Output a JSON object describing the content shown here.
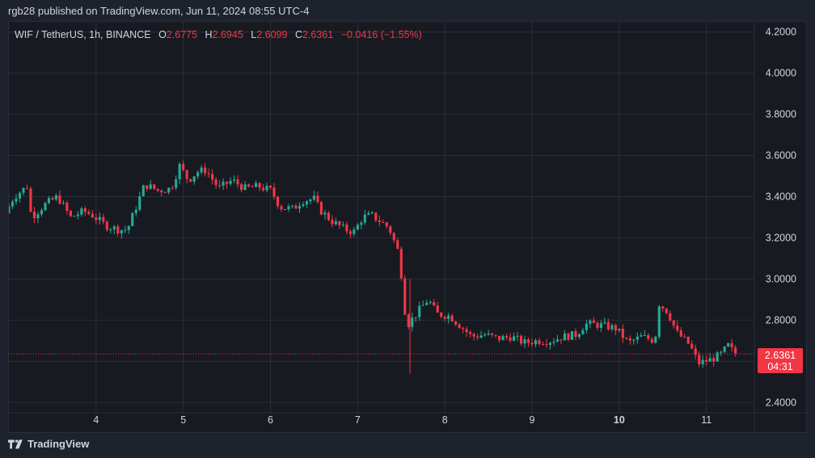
{
  "header": {
    "published": "rgb28 published on TradingView.com, Jun 11, 2024 08:55 UTC-4"
  },
  "legend": {
    "symbol": "WIF / TetherUS, 1h, BINANCE",
    "open_label": "O",
    "open": "2.6775",
    "high_label": "H",
    "high": "2.6945",
    "low_label": "L",
    "low": "2.6099",
    "close_label": "C",
    "close": "2.6361",
    "change": "−0.0416 (−1.55%)"
  },
  "price_tag": {
    "price": "2.6361",
    "countdown": "04:31"
  },
  "footer": {
    "brand": "TradingView",
    "logo_icon": "tradingview-logo-icon"
  },
  "colors": {
    "up": "#22ab94",
    "down": "#f23645",
    "grid": "#2a2e39",
    "background": "#181a22"
  },
  "chart_data": {
    "type": "candlestick",
    "interval": "1h",
    "ylim": [
      2.35,
      4.25
    ],
    "y_ticks": [
      "4.2000",
      "4.0000",
      "3.8000",
      "3.6000",
      "3.4000",
      "3.2000",
      "3.0000",
      "2.8000",
      "2.6000",
      "2.4000"
    ],
    "y_tick_values": [
      4.2,
      4.0,
      3.8,
      3.6,
      3.4,
      3.2,
      3.0,
      2.8,
      2.6,
      2.4
    ],
    "x_ticks": [
      {
        "label": "4",
        "day": 4,
        "bold": false
      },
      {
        "label": "5",
        "day": 5,
        "bold": false
      },
      {
        "label": "6",
        "day": 6,
        "bold": false
      },
      {
        "label": "7",
        "day": 7,
        "bold": false
      },
      {
        "label": "8",
        "day": 8,
        "bold": false
      },
      {
        "label": "9",
        "day": 9,
        "bold": false
      },
      {
        "label": "10",
        "day": 10,
        "bold": true
      },
      {
        "label": "11",
        "day": 11,
        "bold": false
      }
    ],
    "xlim_days": [
      3.0,
      11.55
    ],
    "last_price": 2.6361,
    "price_path": [
      [
        3.0,
        3.32
      ],
      [
        3.1,
        3.4
      ],
      [
        3.25,
        3.45
      ],
      [
        3.3,
        3.3
      ],
      [
        3.45,
        3.36
      ],
      [
        3.6,
        3.4
      ],
      [
        3.75,
        3.3
      ],
      [
        3.9,
        3.33
      ],
      [
        4.0,
        3.31
      ],
      [
        4.15,
        3.26
      ],
      [
        4.3,
        3.24
      ],
      [
        4.4,
        3.24
      ],
      [
        4.5,
        3.35
      ],
      [
        4.6,
        3.46
      ],
      [
        4.75,
        3.43
      ],
      [
        4.9,
        3.44
      ],
      [
        5.0,
        3.55
      ],
      [
        5.1,
        3.48
      ],
      [
        5.2,
        3.52
      ],
      [
        5.3,
        3.53
      ],
      [
        5.45,
        3.44
      ],
      [
        5.6,
        3.48
      ],
      [
        5.75,
        3.44
      ],
      [
        5.9,
        3.45
      ],
      [
        6.05,
        3.43
      ],
      [
        6.15,
        3.35
      ],
      [
        6.3,
        3.34
      ],
      [
        6.4,
        3.38
      ],
      [
        6.55,
        3.39
      ],
      [
        6.6,
        3.34
      ],
      [
        6.75,
        3.28
      ],
      [
        6.9,
        3.24
      ],
      [
        7.0,
        3.23
      ],
      [
        7.1,
        3.3
      ],
      [
        7.2,
        3.31
      ],
      [
        7.3,
        3.28
      ],
      [
        7.4,
        3.25
      ],
      [
        7.5,
        3.14
      ],
      [
        7.55,
        3.0
      ],
      [
        7.6,
        2.77
      ],
      [
        7.75,
        2.85
      ],
      [
        7.85,
        2.9
      ],
      [
        7.95,
        2.83
      ],
      [
        8.1,
        2.82
      ],
      [
        8.25,
        2.76
      ],
      [
        8.35,
        2.72
      ],
      [
        8.5,
        2.73
      ],
      [
        8.65,
        2.71
      ],
      [
        8.8,
        2.72
      ],
      [
        8.95,
        2.69
      ],
      [
        9.1,
        2.7
      ],
      [
        9.25,
        2.7
      ],
      [
        9.4,
        2.72
      ],
      [
        9.55,
        2.73
      ],
      [
        9.65,
        2.78
      ],
      [
        9.75,
        2.78
      ],
      [
        9.9,
        2.77
      ],
      [
        10.0,
        2.76
      ],
      [
        10.15,
        2.69
      ],
      [
        10.3,
        2.72
      ],
      [
        10.45,
        2.7
      ],
      [
        10.5,
        2.88
      ],
      [
        10.6,
        2.84
      ],
      [
        10.7,
        2.74
      ],
      [
        10.85,
        2.68
      ],
      [
        10.95,
        2.59
      ],
      [
        11.1,
        2.61
      ],
      [
        11.2,
        2.63
      ],
      [
        11.3,
        2.68
      ],
      [
        11.35,
        2.64
      ]
    ]
  }
}
